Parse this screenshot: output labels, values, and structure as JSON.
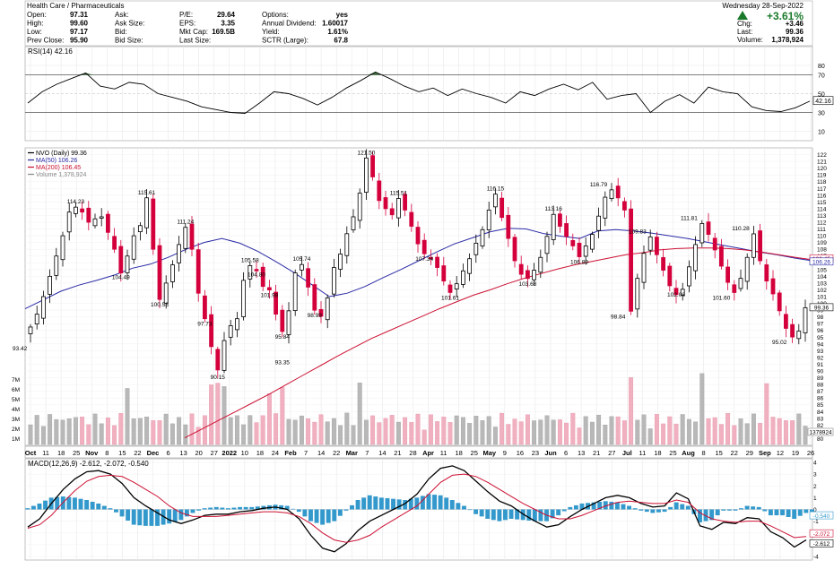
{
  "header": {
    "sector": "Health Care / Pharmaceuticals",
    "date": "Wednesday  28-Sep-2022",
    "change_pct": "+3.61%",
    "stats": [
      [
        {
          "label": "Open:",
          "value": "97.31"
        },
        {
          "label": "Ask:",
          "value": ""
        },
        {
          "label": "P/E:",
          "value": "29.64"
        },
        {
          "label": "Options:",
          "value": "yes"
        }
      ],
      [
        {
          "label": "High:",
          "value": "99.60"
        },
        {
          "label": "Ask Size:",
          "value": ""
        },
        {
          "label": "EPS:",
          "value": "3.35"
        },
        {
          "label": "Annual Dividend:",
          "value": "1.60017"
        }
      ],
      [
        {
          "label": "Low:",
          "value": "97.17"
        },
        {
          "label": "Bid:",
          "value": ""
        },
        {
          "label": "Mkt Cap:",
          "value": "169.5B"
        },
        {
          "label": "Yield:",
          "value": "1.61%"
        }
      ],
      [
        {
          "label": "Prev Close:",
          "value": "95.90"
        },
        {
          "label": "Bid Size:",
          "value": ""
        },
        {
          "label": "Last Size:",
          "value": ""
        },
        {
          "label": "SCTR (Large):",
          "value": "67.8"
        }
      ]
    ],
    "right_stats": [
      {
        "label": "Chg:",
        "value": "+3.46"
      },
      {
        "label": "Last:",
        "value": "99.36"
      },
      {
        "label": "Volume:",
        "value": "1,378,924"
      }
    ]
  },
  "colors": {
    "up": "#000000",
    "down": "#d4003c",
    "ma50": "#2a2aa6",
    "ma200": "#cc1133",
    "macd_hist": "#3399cc",
    "rsi_fill": "#3d6e3d"
  },
  "chart_data": [
    {
      "type": "line",
      "name": "RSI(14) 42.16",
      "y_ticks": [
        10,
        30,
        50,
        70,
        80
      ],
      "ylim": [
        0,
        100
      ],
      "last_label": "42.16",
      "values": [
        40,
        52,
        60,
        66,
        72,
        58,
        55,
        62,
        60,
        50,
        46,
        42,
        36,
        33,
        30,
        29,
        40,
        52,
        50,
        45,
        38,
        46,
        56,
        64,
        73,
        66,
        58,
        52,
        56,
        48,
        55,
        50,
        46,
        40,
        52,
        48,
        55,
        60,
        54,
        62,
        44,
        48,
        50,
        30,
        42,
        49,
        40,
        57,
        52,
        50,
        36,
        32,
        31,
        35,
        42
      ]
    },
    {
      "type": "candlestick",
      "name": "NVO (Daily) 99.36",
      "ylim": [
        79,
        123
      ],
      "y_ticks": [
        80,
        82,
        83,
        84,
        85,
        86,
        87,
        88,
        89,
        90,
        91,
        92,
        93,
        94,
        95,
        96,
        97,
        98,
        99,
        100,
        101,
        102,
        103,
        104,
        105,
        106,
        107,
        108,
        109,
        110,
        111,
        112,
        113,
        114,
        115,
        116,
        117,
        118,
        119,
        120,
        121,
        122
      ],
      "x_ticks": [
        "Oct",
        "11",
        "18",
        "25",
        "Nov",
        "8",
        "15",
        "22",
        "Dec",
        "6",
        "13",
        "20",
        "27",
        "2022",
        "10",
        "18",
        "24",
        "Feb",
        "7",
        "14",
        "22",
        "Mar",
        "7",
        "14",
        "21",
        "28",
        "Apr",
        "11",
        "18",
        "25",
        "May",
        "9",
        "16",
        "23",
        "Jun",
        "6",
        "13",
        "21",
        "27",
        "Jul",
        "11",
        "18",
        "25",
        "Aug",
        "8",
        "15",
        "22",
        "29",
        "Sep",
        "12",
        "19",
        "26"
      ],
      "legend": [
        {
          "name": "NVO (Daily) 99.36",
          "color": "#000000"
        },
        {
          "name": "MA(50) 106.26",
          "color": "#2a2aa6"
        },
        {
          "name": "MA(200) 106.45",
          "color": "#cc1133"
        },
        {
          "name": "Volume 1,378,924",
          "color": "#888888"
        }
      ],
      "series": [
        {
          "name": "NVO",
          "values": [
            96.5,
            98.4,
            101,
            104,
            107,
            110,
            113.5,
            114.23,
            113.5,
            112,
            112.5,
            112.8,
            110.5,
            108,
            104.49,
            107,
            110,
            111.5,
            115.61,
            108,
            100.58,
            103,
            105.7,
            108.7,
            111.24,
            108,
            101.5,
            97.73,
            93.6,
            90.15,
            94.5,
            96.7,
            97.73,
            103.4,
            105.58,
            104.8,
            102.5,
            101.98,
            98.4,
            95.84,
            98.9,
            104.5,
            105.74,
            102.4,
            98.99,
            98.1,
            100.8,
            105.3,
            107.3,
            110.3,
            112.8,
            116.3,
            121.5,
            118.7,
            115.2,
            114,
            113.1,
            115.51,
            113.8,
            111.4,
            108.8,
            107.34,
            106.6,
            105.3,
            103.3,
            101.61,
            102.9,
            104.8,
            106.6,
            108.9,
            110.9,
            113.8,
            116.15,
            112.7,
            109.6,
            106.3,
            104.3,
            103.68,
            104.9,
            106.8,
            109.9,
            113.16,
            111.4,
            109.9,
            108.5,
            106.89,
            108.5,
            110.2,
            112.9,
            115.7,
            116.79,
            115.6,
            113.8,
            98.84,
            103.7,
            107.4,
            109.83,
            107.2,
            104.9,
            102.6,
            101.3,
            102.08,
            105.4,
            108.7,
            111.81,
            110.2,
            107.9,
            105.5,
            103.1,
            101.6,
            103.7,
            106.8,
            110.28,
            106.3,
            103.3,
            101.4,
            98.9,
            96.3,
            95.02,
            95.9,
            99.36
          ]
        },
        {
          "name": "MA(50)",
          "color": "#2a2aa6",
          "values": [
            99.2,
            100.5,
            101.8,
            102.7,
            103.4,
            104.2,
            105.2,
            105.8,
            106.8,
            108.0,
            109.0,
            109.6,
            108.9,
            107.7,
            106.2,
            104.6,
            102.8,
            101.0,
            101.5,
            102.5,
            103.8,
            105.0,
            106.3,
            107.6,
            108.8,
            109.7,
            110.6,
            111.1,
            111.0,
            110.3,
            109.9,
            109.6,
            110.7,
            110.9,
            110.7,
            110.4,
            110.0,
            109.6,
            109.1,
            108.6,
            108.1,
            107.6,
            107.2,
            106.7,
            106.3
          ]
        },
        {
          "name": "MA(200)",
          "color": "#cc1133",
          "values": [
            80.1,
            81.4,
            82.7,
            84.0,
            85.3,
            86.6,
            88.0,
            89.4,
            90.8,
            92.2,
            93.5,
            94.8,
            95.9,
            97.0,
            98.1,
            99.2,
            100.2,
            101.2,
            102.0,
            102.9,
            103.7,
            104.4,
            105.1,
            105.7,
            106.2,
            106.7,
            107.2,
            107.5,
            107.9,
            108.1,
            108.2,
            108.2,
            108.1,
            107.9,
            107.6,
            107.2,
            106.8,
            106.45
          ]
        }
      ],
      "annotations": [
        "114.23",
        "104.49",
        "115.61",
        "100.58",
        "111.24",
        "97.73",
        "105.58",
        "104.80",
        "101.98",
        "95.84",
        "93.35",
        "105.74",
        "98.99",
        "90.15",
        "121.50",
        "115.51",
        "107.34",
        "101.61",
        "116.15",
        "103.68",
        "113.16",
        "106.89",
        "116.79",
        "98.84",
        "109.83",
        "102.08",
        "111.81",
        "101.60",
        "110.28",
        "95.02",
        "93.42"
      ],
      "right_labels": [
        "99.36",
        "106.45",
        "106.26",
        "1378924"
      ],
      "volume_ticks": [
        "1M",
        "2M",
        "3M",
        "4M",
        "5M",
        "6M",
        "7M"
      ]
    },
    {
      "type": "line",
      "name": "MACD(12,26,9) -2.612, -2.072, -0.540",
      "ylim": [
        -4,
        4
      ],
      "y_ticks": [
        "4",
        "3",
        "2",
        "1",
        "0",
        "-1",
        "-2",
        "-3",
        "-4"
      ],
      "right_labels": [
        "-0.540",
        "-2.072",
        "-2.612"
      ],
      "series": [
        {
          "name": "MACD",
          "color": "#000000",
          "values": [
            -1.5,
            -0.8,
            0.5,
            1.7,
            2.6,
            3.2,
            3.3,
            3.0,
            2.2,
            1.0,
            0.3,
            -0.3,
            -0.9,
            -1.2,
            -0.9,
            -0.5,
            -0.4,
            -0.4,
            -0.2,
            -0.1,
            0.1,
            0.2,
            0.0,
            -0.8,
            -2.2,
            -3.3,
            -3.6,
            -2.9,
            -1.8,
            -1.0,
            -0.5,
            0.0,
            0.5,
            1.3,
            2.6,
            3.5,
            3.7,
            3.3,
            2.4,
            1.5,
            0.7,
            0.3,
            -0.4,
            -1.0,
            -1.5,
            -1.3,
            -0.6,
            0.0,
            0.5,
            1.0,
            1.2,
            1.0,
            0.5,
            0.2,
            0.3,
            1.4,
            0.9,
            -1.4,
            -1.7,
            -1.1,
            -1.2,
            -0.7,
            -0.8,
            -1.9,
            -2.4,
            -3.2,
            -2.6
          ]
        },
        {
          "name": "Signal",
          "color": "#cc1133",
          "values": [
            -1.6,
            -1.3,
            -0.5,
            0.6,
            1.6,
            2.4,
            2.8,
            2.9,
            2.8,
            2.3,
            1.7,
            1.1,
            0.3,
            -0.3,
            -0.6,
            -0.6,
            -0.6,
            -0.5,
            -0.4,
            -0.3,
            -0.2,
            -0.2,
            -0.3,
            -0.6,
            -1.2,
            -2.0,
            -2.6,
            -2.8,
            -2.6,
            -2.2,
            -1.5,
            -0.9,
            -0.3,
            0.3,
            1.3,
            2.3,
            2.9,
            3.0,
            2.8,
            2.3,
            1.7,
            1.1,
            0.5,
            0.0,
            -0.5,
            -0.8,
            -0.8,
            -0.5,
            -0.1,
            0.3,
            0.6,
            0.7,
            0.6,
            0.5,
            0.5,
            0.8,
            0.6,
            -0.3,
            -0.8,
            -1.0,
            -1.1,
            -1.0,
            -1.0,
            -1.4,
            -1.9,
            -2.4,
            -2.3
          ]
        }
      ]
    }
  ]
}
